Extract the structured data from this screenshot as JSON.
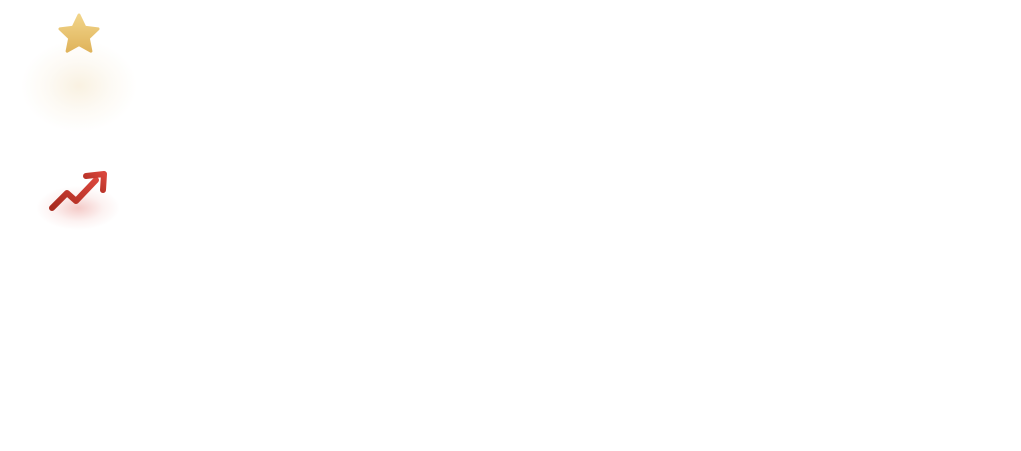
{
  "icons": [
    {
      "name": "star-icon",
      "gradient_top": "#f1d489",
      "gradient_bottom": "#e0b45c",
      "glow": "#e6c27a"
    },
    {
      "name": "trending-up-icon",
      "gradient_start": "#a82a1e",
      "gradient_end": "#d9463c",
      "glow": "#d9463c"
    }
  ]
}
